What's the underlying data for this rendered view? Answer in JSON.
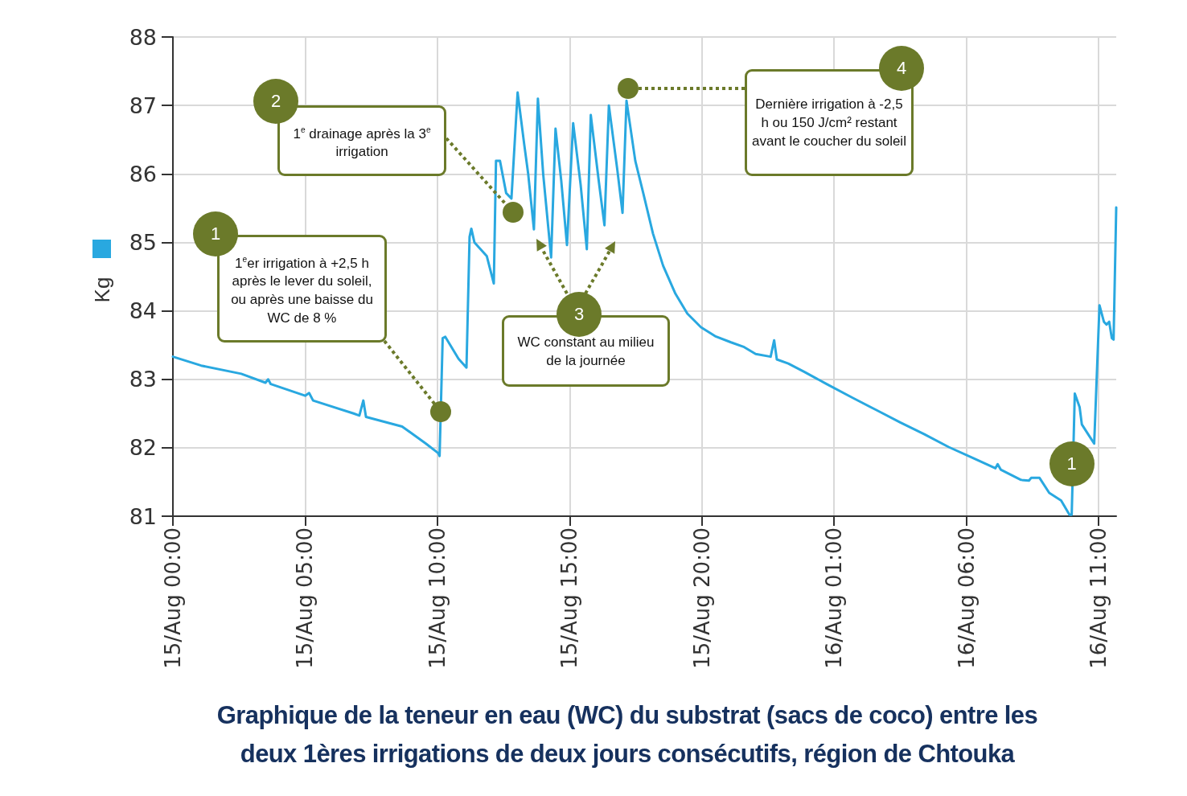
{
  "chart_data": {
    "type": "line",
    "title": "Graphique de la teneur en eau (WC) du substrat (sacs de coco) entre les deux 1ères irrigations de deux jours consécutifs, région de Chtouka",
    "ylabel": "Kg",
    "marker": "none",
    "line_style": "solid",
    "grid": true,
    "xlim": [
      "--08-15T00:00",
      "--08-16T11:40"
    ],
    "xticks": [
      {
        "value": "--08-15T00:00",
        "label": "15/Aug 00:00"
      },
      {
        "value": "--08-15T05:00",
        "label": "15/Aug 05:00"
      },
      {
        "value": "--08-15T10:00",
        "label": "15/Aug 10:00"
      },
      {
        "value": "--08-15T15:00",
        "label": "15/Aug 15:00"
      },
      {
        "value": "--08-15T20:00",
        "label": "15/Aug 20:00"
      },
      {
        "value": "--08-16T01:00",
        "label": "16/Aug 01:00"
      },
      {
        "value": "--08-16T06:00",
        "label": "16/Aug 06:00"
      },
      {
        "value": "--08-16T11:00",
        "label": "16/Aug 11:00"
      }
    ],
    "ylim": [
      81,
      88
    ],
    "yticks": [
      81,
      82,
      83,
      84,
      85,
      86,
      87,
      88
    ],
    "series": [
      {
        "color": "#29a8e0",
        "x": [
          "--08-15T00:00",
          "--08-15T01:04",
          "--08-15T02:35",
          "--08-15T03:30",
          "--08-15T03:36",
          "--08-15T03:42",
          "--08-15T05:00",
          "--08-15T05:09",
          "--08-15T05:18",
          "--08-15T06:50",
          "--08-15T07:03",
          "--08-15T07:12",
          "--08-15T07:18",
          "--08-15T08:40",
          "--08-15T09:34",
          "--08-15T10:02",
          "--08-15T10:05",
          "--08-15T10:12",
          "--08-15T10:18",
          "--08-15T10:48",
          "--08-15T11:06",
          "--08-15T11:13",
          "--08-15T11:17",
          "--08-15T11:24",
          "--08-15T11:52",
          "--08-15T12:08",
          "--08-15T12:13",
          "--08-15T12:22",
          "--08-15T12:36",
          "--08-15T12:48",
          "--08-15T13:02",
          "--08-15T13:17",
          "--08-15T13:26",
          "--08-15T13:39",
          "--08-15T13:48",
          "--08-15T14:00",
          "--08-15T14:18",
          "--08-15T14:28",
          "--08-15T14:41",
          "--08-15T14:54",
          "--08-15T15:08",
          "--08-15T15:25",
          "--08-15T15:39",
          "--08-15T15:48",
          "--08-15T16:06",
          "--08-15T16:19",
          "--08-15T16:29",
          "--08-15T16:48",
          "--08-15T17:00",
          "--08-15T17:09",
          "--08-15T17:29",
          "--08-15T17:47",
          "--08-15T18:09",
          "--08-15T18:32",
          "--08-15T19:00",
          "--08-15T19:27",
          "--08-15T19:58",
          "--08-15T20:30",
          "--08-15T21:06",
          "--08-15T21:36",
          "--08-15T22:02",
          "--08-15T22:36",
          "--08-15T22:44",
          "--08-15T22:50",
          "--08-15T23:16",
          "--08-15T23:52",
          "--08-16T00:43",
          "--08-16T01:42",
          "--08-16T02:36",
          "--08-16T03:30",
          "--08-16T04:24",
          "--08-16T05:20",
          "--08-16T06:15",
          "--08-16T07:06",
          "--08-16T07:11",
          "--08-16T07:18",
          "--08-16T08:04",
          "--08-16T08:22",
          "--08-16T08:27",
          "--08-16T08:46",
          "--08-16T09:08",
          "--08-16T09:35",
          "--08-16T09:54",
          "--08-16T09:59",
          "--08-16T10:06",
          "--08-16T10:17",
          "--08-16T10:22",
          "--08-16T10:39",
          "--08-16T10:50",
          "--08-16T11:02",
          "--08-16T11:12",
          "--08-16T11:18",
          "--08-16T11:24",
          "--08-16T11:30",
          "--08-16T11:34",
          "--08-16T11:40"
        ],
        "values": [
          83.33,
          83.2,
          83.08,
          82.95,
          83.0,
          82.93,
          82.76,
          82.8,
          82.69,
          82.5,
          82.47,
          82.69,
          82.45,
          82.31,
          82.06,
          81.92,
          81.88,
          83.6,
          83.62,
          83.3,
          83.17,
          85.08,
          85.2,
          85.0,
          84.8,
          84.4,
          86.19,
          86.19,
          85.72,
          85.64,
          87.19,
          86.43,
          86.0,
          85.19,
          87.1,
          86.0,
          84.78,
          86.66,
          85.9,
          84.96,
          86.74,
          85.84,
          84.9,
          86.86,
          85.9,
          85.25,
          87.0,
          86.07,
          85.43,
          87.07,
          86.19,
          85.72,
          85.13,
          84.66,
          84.25,
          83.96,
          83.76,
          83.63,
          83.54,
          83.47,
          83.37,
          83.33,
          83.57,
          83.29,
          83.23,
          83.11,
          82.93,
          82.73,
          82.55,
          82.37,
          82.2,
          82.01,
          81.85,
          81.7,
          81.76,
          81.68,
          81.53,
          81.52,
          81.56,
          81.56,
          81.34,
          81.23,
          81.02,
          81.02,
          82.79,
          82.59,
          82.34,
          82.17,
          82.06,
          84.08,
          83.84,
          83.8,
          83.84,
          83.6,
          83.58,
          85.51
        ]
      }
    ],
    "annotations": [
      "1",
      "1$^{e}$er irrigation à +2,5 h après le lever du soleil, ou après une baisse du WC de 8 %",
      "2",
      "1$^{e}$ drainage après la 3$^{e}$ irrigation",
      "3",
      "WC constant au milieu de la journée",
      "4",
      "Dernière irrigation à -2,5 h ou 150 J/cm² restant avant le coucher du soleil",
      {
        "text": "1",
        "x": "--08-16T09:59",
        "y": 81.76
      }
    ]
  }
}
